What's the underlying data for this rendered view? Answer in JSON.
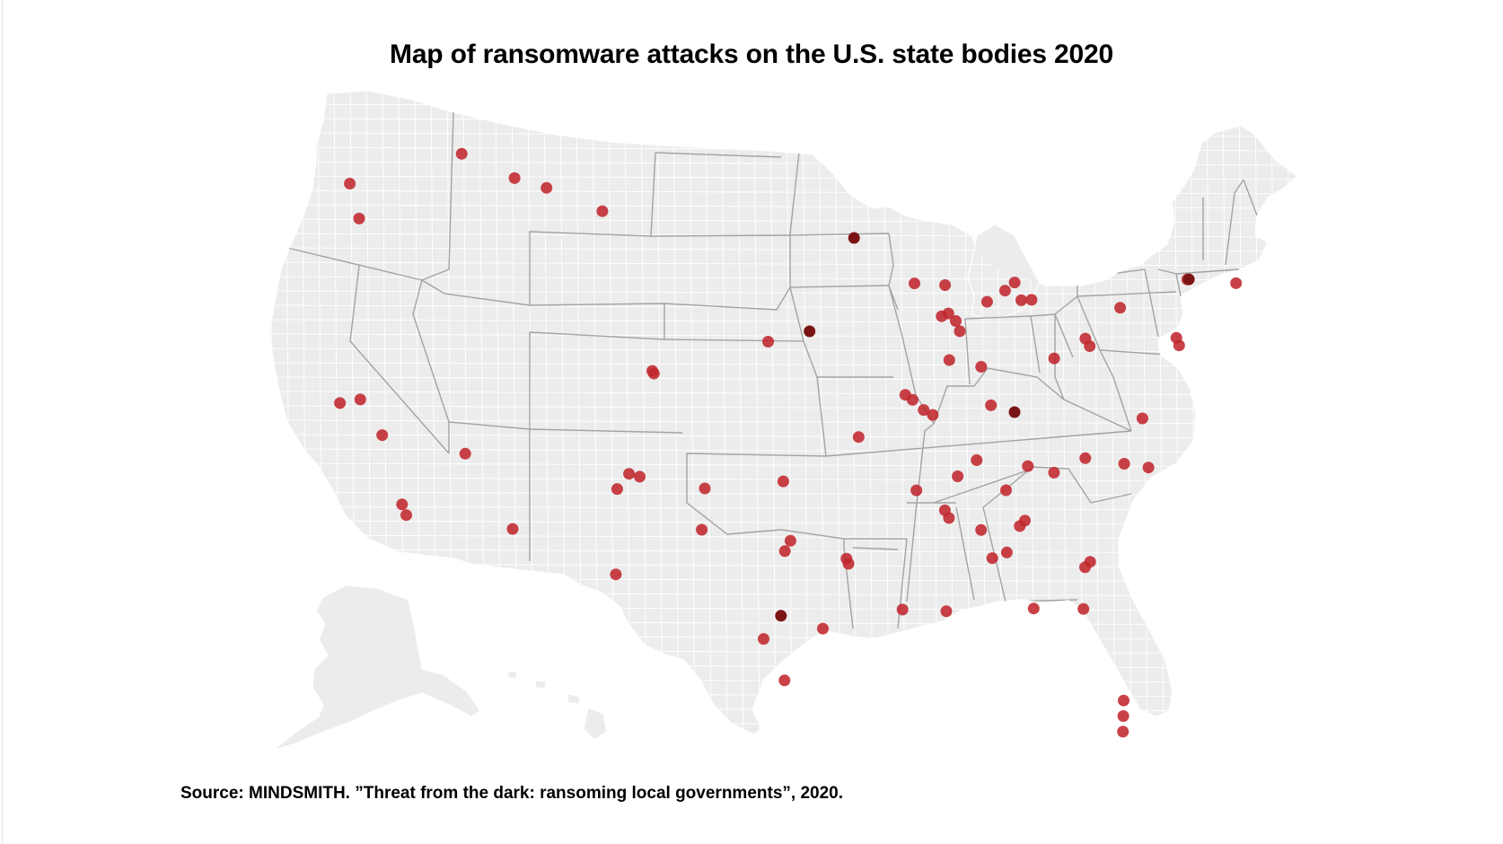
{
  "title": "Map of ransomware attacks on the U.S. state bodies 2020",
  "source": "Source: MINDSMITH. ”Threat from the dark: ransoming local governments”, 2020.",
  "colors": {
    "land": "#ececec",
    "county_border": "#ffffff",
    "state_border": "#a3a3a3",
    "marker": "#c0272d",
    "marker_dark": "#7a1414"
  },
  "chart_data": {
    "type": "scatter",
    "map": "United States (counties)",
    "points": [
      {
        "lon": -123.9,
        "lat": 46.2
      },
      {
        "lon": -123.0,
        "lat": 44.9
      },
      {
        "lon": -117.4,
        "lat": 47.7
      },
      {
        "lon": -114.0,
        "lat": 46.9
      },
      {
        "lon": -108.5,
        "lat": 45.8
      },
      {
        "lon": -112.0,
        "lat": 46.6
      },
      {
        "lon": -122.4,
        "lat": 37.8
      },
      {
        "lon": -121.3,
        "lat": 38.0
      },
      {
        "lon": -119.8,
        "lat": 36.7
      },
      {
        "lon": -118.2,
        "lat": 34.1
      },
      {
        "lon": -117.9,
        "lat": 33.7
      },
      {
        "lon": -115.1,
        "lat": 36.2
      },
      {
        "lon": -112.1,
        "lat": 33.4
      },
      {
        "lon": -105.0,
        "lat": 39.7
      },
      {
        "lon": -104.9,
        "lat": 39.6
      },
      {
        "lon": -106.6,
        "lat": 35.1
      },
      {
        "lon": -106.0,
        "lat": 35.7
      },
      {
        "lon": -105.4,
        "lat": 35.6
      },
      {
        "lon": -106.4,
        "lat": 31.8
      },
      {
        "lon": -101.8,
        "lat": 35.2
      },
      {
        "lon": -101.9,
        "lat": 33.6
      },
      {
        "lon": -97.4,
        "lat": 32.8
      },
      {
        "lon": -97.1,
        "lat": 33.2
      },
      {
        "lon": -98.5,
        "lat": 29.4
      },
      {
        "lon": -97.6,
        "lat": 30.3,
        "dark": true
      },
      {
        "lon": -95.4,
        "lat": 29.8
      },
      {
        "lon": -97.4,
        "lat": 27.8
      },
      {
        "lon": -94.1,
        "lat": 32.5
      },
      {
        "lon": -94.0,
        "lat": 32.3
      },
      {
        "lon": -97.5,
        "lat": 35.5
      },
      {
        "lon": -98.4,
        "lat": 40.9
      },
      {
        "lon": -96.0,
        "lat": 41.3,
        "dark": true
      },
      {
        "lon": -93.3,
        "lat": 44.9,
        "dark": true
      },
      {
        "lon": -93.3,
        "lat": 37.2
      },
      {
        "lon": -90.6,
        "lat": 38.8
      },
      {
        "lon": -90.2,
        "lat": 38.6
      },
      {
        "lon": -89.6,
        "lat": 38.2
      },
      {
        "lon": -89.1,
        "lat": 38.0
      },
      {
        "lon": -90.2,
        "lat": 35.1
      },
      {
        "lon": -89.8,
        "lat": 43.1
      },
      {
        "lon": -88.0,
        "lat": 43.0
      },
      {
        "lon": -88.3,
        "lat": 41.8
      },
      {
        "lon": -87.9,
        "lat": 41.9
      },
      {
        "lon": -87.5,
        "lat": 41.6
      },
      {
        "lon": -87.3,
        "lat": 41.2
      },
      {
        "lon": -88.0,
        "lat": 40.1
      },
      {
        "lon": -86.2,
        "lat": 39.8
      },
      {
        "lon": -85.8,
        "lat": 38.3
      },
      {
        "lon": -84.5,
        "lat": 38.0,
        "dark": true
      },
      {
        "lon": -85.6,
        "lat": 42.3
      },
      {
        "lon": -84.5,
        "lat": 42.7
      },
      {
        "lon": -83.9,
        "lat": 43.0
      },
      {
        "lon": -83.6,
        "lat": 42.3
      },
      {
        "lon": -83.0,
        "lat": 42.3
      },
      {
        "lon": -82.0,
        "lat": 40.0
      },
      {
        "lon": -86.8,
        "lat": 36.2
      },
      {
        "lon": -87.9,
        "lat": 35.6
      },
      {
        "lon": -88.7,
        "lat": 34.3
      },
      {
        "lon": -88.5,
        "lat": 34.0
      },
      {
        "lon": -85.3,
        "lat": 35.0
      },
      {
        "lon": -84.0,
        "lat": 35.9
      },
      {
        "lon": -82.6,
        "lat": 35.6
      },
      {
        "lon": -84.4,
        "lat": 33.8
      },
      {
        "lon": -84.7,
        "lat": 33.6
      },
      {
        "lon": -86.8,
        "lat": 33.5
      },
      {
        "lon": -86.3,
        "lat": 32.4
      },
      {
        "lon": -85.5,
        "lat": 32.6
      },
      {
        "lon": -84.3,
        "lat": 30.4
      },
      {
        "lon": -91.2,
        "lat": 30.5
      },
      {
        "lon": -88.9,
        "lat": 30.4
      },
      {
        "lon": -80.8,
        "lat": 36.1
      },
      {
        "lon": -78.7,
        "lat": 35.8
      },
      {
        "lon": -77.4,
        "lat": 35.6
      },
      {
        "lon": -77.4,
        "lat": 37.5
      },
      {
        "lon": -81.1,
        "lat": 32.1
      },
      {
        "lon": -81.4,
        "lat": 31.9
      },
      {
        "lon": -81.7,
        "lat": 30.3
      },
      {
        "lon": -80.1,
        "lat": 26.7
      },
      {
        "lon": -80.2,
        "lat": 26.1
      },
      {
        "lon": -80.3,
        "lat": 25.5
      },
      {
        "lon": -79.9,
        "lat": 40.4
      },
      {
        "lon": -80.1,
        "lat": 40.7
      },
      {
        "lon": -77.9,
        "lat": 41.8
      },
      {
        "lon": -74.8,
        "lat": 40.2
      },
      {
        "lon": -74.9,
        "lat": 40.5
      },
      {
        "lon": -73.8,
        "lat": 42.7
      },
      {
        "lon": -73.7,
        "lat": 42.7,
        "dark": true
      },
      {
        "lon": -71.0,
        "lat": 42.4
      }
    ]
  }
}
